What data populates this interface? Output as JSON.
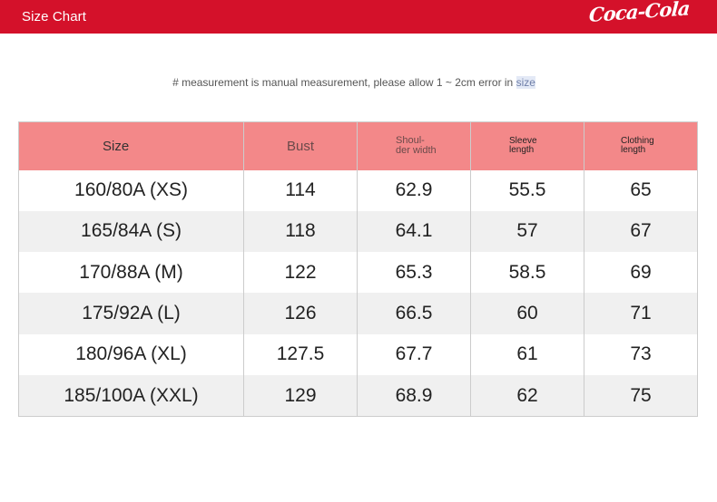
{
  "header": {
    "title": "Size Chart",
    "brand": "Coca-Cola",
    "bg_color": "#d4112a"
  },
  "note": {
    "text": "# measurement is manual measurement, please allow 1 ~ 2cm error in ",
    "highlight": "size"
  },
  "table": {
    "header_color": "#f38889",
    "columns": {
      "size": "Size",
      "bust": "Bust",
      "shoulder_line1": "Shoul-",
      "shoulder_line2": "der width",
      "sleeve_line1": "Sleeve",
      "sleeve_line2": "length",
      "clothing_line1": "Clothing",
      "clothing_line2": "length"
    },
    "rows": [
      {
        "size": "160/80A (XS)",
        "bust": "114",
        "shoulder": "62.9",
        "sleeve": "55.5",
        "clothing": "65"
      },
      {
        "size": "165/84A (S)",
        "bust": "118",
        "shoulder": "64.1",
        "sleeve": "57",
        "clothing": "67"
      },
      {
        "size": "170/88A (M)",
        "bust": "122",
        "shoulder": "65.3",
        "sleeve": "58.5",
        "clothing": "69"
      },
      {
        "size": "175/92A (L)",
        "bust": "126",
        "shoulder": "66.5",
        "sleeve": "60",
        "clothing": "71"
      },
      {
        "size": "180/96A (XL)",
        "bust": "127.5",
        "shoulder": "67.7",
        "sleeve": "61",
        "clothing": "73"
      },
      {
        "size": "185/100A (XXL)",
        "bust": "129",
        "shoulder": "68.9",
        "sleeve": "62",
        "clothing": "75"
      }
    ]
  }
}
